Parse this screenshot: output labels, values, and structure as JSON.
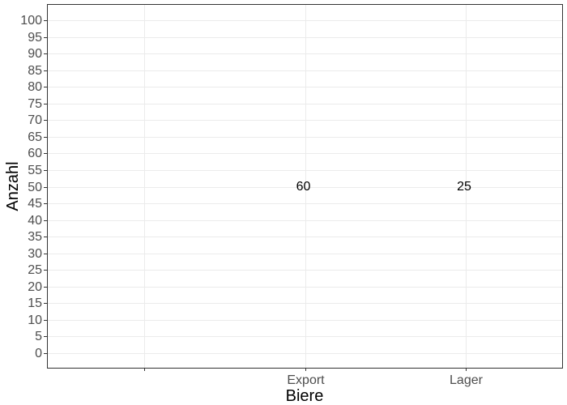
{
  "chart_data": {
    "type": "bar",
    "categories": [
      "",
      "Export",
      "Lager"
    ],
    "values": [
      null,
      60,
      25
    ],
    "data_labels": [
      "",
      "60",
      "25"
    ],
    "xlabel": "Biere",
    "ylabel": "Anzahl",
    "ylim": [
      0,
      100
    ],
    "ytick_step": 5,
    "grid": true,
    "legend": "none",
    "colors": {
      "panel_border": "#333333",
      "grid": "#ebebeb",
      "tick_text": "#4d4d4d",
      "title_text": "#000000"
    }
  }
}
